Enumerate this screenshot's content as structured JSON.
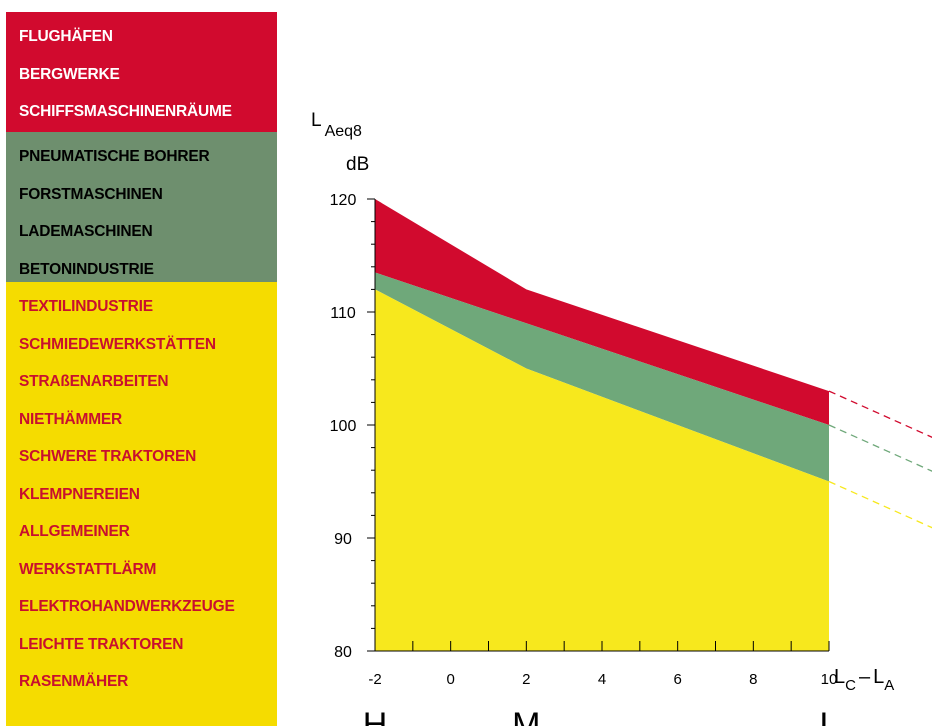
{
  "legend": {
    "groups": [
      {
        "color": "#d10a2e",
        "text_color": "#ffffff",
        "items": [
          "FLUGHÄFEN",
          "BERGWERKE",
          "SCHIFFSMASCHINENRÄUME"
        ]
      },
      {
        "color": "#6e8f6e",
        "text_color": "#000000",
        "items": [
          "PNEUMATISCHE BOHRER",
          "FORSTMASCHINEN",
          "LADEMASCHINEN",
          "BETONINDUSTRIE"
        ]
      },
      {
        "color": "#f5dc00",
        "text_color": "#c8102e",
        "items": [
          "TEXTILINDUSTRIE",
          "SCHMIEDEWERKSTÄTTEN",
          "STRAßENARBEITEN",
          "NIETHÄMMER",
          "SCHWERE TRAKTOREN",
          "KLEMPNEREIEN",
          "ALLGEMEINER",
          "WERKSTATTLÄRM",
          "ELEKTROHANDWERKZEUGE",
          "LEICHTE TRAKTOREN",
          "RASENMÄHER"
        ]
      }
    ]
  },
  "chart_data": {
    "type": "area",
    "ylabel_main": "L",
    "ylabel_sub": "Aeq8",
    "yunit": "dB",
    "xlabel_main": "L",
    "xlabel_sub1": "C",
    "xlabel_sep": "–",
    "xlabel_main2": "L",
    "xlabel_sub2": "A",
    "xlim": [
      -2,
      10
    ],
    "ylim": [
      80,
      120
    ],
    "xticks": [
      -2,
      0,
      2,
      4,
      6,
      8,
      10
    ],
    "yticks": [
      80,
      90,
      100,
      110,
      120
    ],
    "category_labels": [
      {
        "x": -2,
        "label": "H"
      },
      {
        "x": 2,
        "label": "M"
      },
      {
        "x": 10,
        "label": "L"
      }
    ],
    "series": [
      {
        "color": "#d10a2e",
        "upper": [
          [
            -2,
            120
          ],
          [
            2,
            112
          ],
          [
            10,
            103
          ]
        ],
        "lower": [
          [
            -2,
            113.5
          ],
          [
            2,
            109
          ],
          [
            10,
            100
          ]
        ],
        "extension": [
          [
            10,
            103
          ],
          [
            13,
            98.5
          ]
        ]
      },
      {
        "color": "#6fa87a",
        "upper": [
          [
            -2,
            113.5
          ],
          [
            2,
            109
          ],
          [
            10,
            100
          ]
        ],
        "lower": [
          [
            -2,
            112
          ],
          [
            2,
            105
          ],
          [
            10,
            95
          ]
        ],
        "extension": [
          [
            10,
            100
          ],
          [
            13,
            95.5
          ]
        ]
      },
      {
        "color": "#f7e81d",
        "upper": [
          [
            -2,
            112
          ],
          [
            2,
            105
          ],
          [
            10,
            95
          ]
        ],
        "lower": [
          [
            -2,
            80
          ],
          [
            10,
            80
          ]
        ],
        "extension": [
          [
            10,
            95
          ],
          [
            13,
            90.5
          ]
        ]
      }
    ]
  }
}
